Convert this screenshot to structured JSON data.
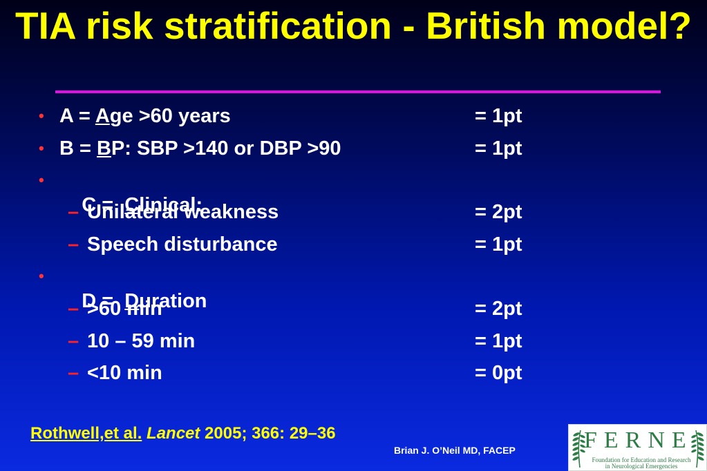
{
  "slide": {
    "title": "TIA risk stratification - British model?",
    "items": [
      {
        "prefix": "A = ",
        "letter": "A",
        "rest": "ge >60 years",
        "points": "= 1pt"
      },
      {
        "prefix": "B = ",
        "letter": "B",
        "rest": "P: SBP >140 or DBP >90",
        "points": "= 1pt"
      },
      {
        "prefix": "C =  ",
        "letter": "C",
        "rest": "linical:",
        "points": ""
      },
      {
        "text": "Unilateral weakness",
        "points": "= 2pt"
      },
      {
        "text": "Speech disturbance",
        "points": "= 1pt"
      },
      {
        "prefix": "D =  ",
        "letter": "D",
        "rest": "uration",
        "points": ""
      },
      {
        "text": ">60 min",
        "points": "= 2pt"
      },
      {
        "text": "10 – 59 min",
        "points": "= 1pt"
      },
      {
        "text": "<10 min",
        "points": "= 0pt"
      }
    ],
    "bullet_glyph": "•",
    "dash_glyph": "–",
    "citation": {
      "authors": "Rothwell,et al.",
      "journal": "Lancet",
      "details": " 2005; 366: 29–36"
    },
    "presenter": "Brian J. O’Neil MD, FACEP"
  },
  "logo": {
    "name": "FERNE",
    "tagline_line1": "Foundation for Education and Research",
    "tagline_line2": "in Neurological Emergencies"
  },
  "colors": {
    "title": "#ffff00",
    "rule": "#e010e0",
    "bullet": "#ff3333",
    "text": "#ffffff",
    "logo_green": "#2e7d46"
  }
}
